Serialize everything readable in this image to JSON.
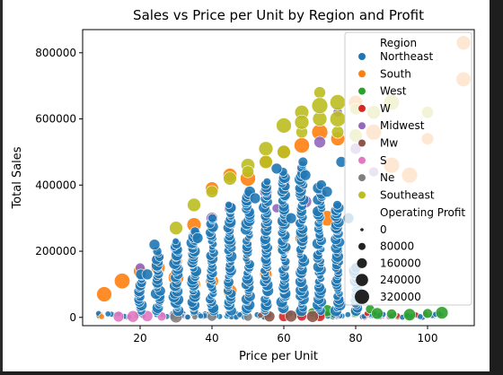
{
  "chart_data": {
    "type": "scatter",
    "title": "Sales vs Price per Unit by Region and Profit",
    "xlabel": "Price per Unit",
    "ylabel": "Total Sales",
    "xlim": [
      4,
      113
    ],
    "ylim": [
      -25000,
      870000
    ],
    "xticks": [
      20,
      40,
      60,
      80,
      100
    ],
    "yticks": [
      0,
      200000,
      400000,
      600000,
      800000
    ],
    "grid": false,
    "legend_position": "top-right",
    "hue_title": "Region",
    "size_title": "Operating Profit",
    "size_legend": [
      {
        "label": "0",
        "value": 0
      },
      {
        "label": "80000",
        "value": 80000
      },
      {
        "label": "160000",
        "value": 160000
      },
      {
        "label": "240000",
        "value": 240000
      },
      {
        "label": "320000",
        "value": 320000
      }
    ],
    "series": [
      {
        "name": "Northeast",
        "color": "#1f77b4",
        "bands": [
          {
            "x": 20,
            "ymax": 130000
          },
          {
            "x": 25,
            "ymax": 200000
          },
          {
            "x": 30,
            "ymax": 230000
          },
          {
            "x": 35,
            "ymax": 260000
          },
          {
            "x": 40,
            "ymax": 300000
          },
          {
            "x": 45,
            "ymax": 340000
          },
          {
            "x": 50,
            "ymax": 380000
          },
          {
            "x": 55,
            "ymax": 410000
          },
          {
            "x": 60,
            "ymax": 440000
          },
          {
            "x": 65,
            "ymax": 470000
          },
          {
            "x": 70,
            "ymax": 400000
          },
          {
            "x": 75,
            "ymax": 340000
          },
          {
            "x": 80,
            "ymax": 150000
          }
        ],
        "points": [
          [
            22,
            130000
          ],
          [
            24,
            220000
          ],
          [
            36,
            240000
          ],
          [
            52,
            360000
          ],
          [
            58,
            450000
          ],
          [
            62,
            300000
          ],
          [
            66,
            430000
          ],
          [
            72,
            380000
          ],
          [
            76,
            470000
          ],
          [
            78,
            300000
          ]
        ]
      },
      {
        "name": "South",
        "color": "#ff7f0e",
        "points": [
          [
            10,
            70000
          ],
          [
            15,
            110000
          ],
          [
            20,
            140000
          ],
          [
            25,
            150000
          ],
          [
            30,
            170000
          ],
          [
            35,
            280000
          ],
          [
            40,
            390000
          ],
          [
            45,
            430000
          ],
          [
            50,
            420000
          ],
          [
            55,
            470000
          ],
          [
            60,
            500000
          ],
          [
            65,
            520000
          ],
          [
            70,
            560000
          ],
          [
            75,
            540000
          ],
          [
            60,
            210000
          ],
          [
            65,
            240000
          ],
          [
            72,
            300000
          ],
          [
            80,
            650000
          ],
          [
            85,
            560000
          ],
          [
            90,
            460000
          ],
          [
            95,
            430000
          ],
          [
            100,
            540000
          ],
          [
            110,
            830000
          ],
          [
            110,
            720000
          ],
          [
            40,
            110000
          ],
          [
            45,
            80000
          ],
          [
            55,
            130000
          ],
          [
            30,
            120000
          ],
          [
            35,
            100000
          ]
        ]
      },
      {
        "name": "West",
        "color": "#2ca02c",
        "points": [
          [
            64,
            10000
          ],
          [
            68,
            15000
          ],
          [
            72,
            20000
          ],
          [
            80,
            15000
          ],
          [
            84,
            25000
          ],
          [
            86,
            12000
          ],
          [
            90,
            10000
          ],
          [
            95,
            8000
          ],
          [
            100,
            12000
          ],
          [
            104,
            14000
          ]
        ]
      },
      {
        "name": "W",
        "color": "#d62728",
        "points": [
          [
            60,
            3000
          ],
          [
            65,
            4000
          ],
          [
            70,
            3500
          ]
        ]
      },
      {
        "name": "Midwest",
        "color": "#9467bd",
        "points": [
          [
            20,
            150000
          ],
          [
            25,
            180000
          ],
          [
            30,
            210000
          ],
          [
            35,
            250000
          ],
          [
            40,
            300000
          ],
          [
            45,
            330000
          ],
          [
            50,
            360000
          ],
          [
            55,
            380000
          ],
          [
            60,
            410000
          ],
          [
            65,
            440000
          ],
          [
            70,
            530000
          ],
          [
            75,
            620000
          ],
          [
            80,
            510000
          ],
          [
            85,
            440000
          ],
          [
            50,
            280000
          ],
          [
            58,
            330000
          ],
          [
            66,
            350000
          ]
        ]
      },
      {
        "name": "Mw",
        "color": "#8c564b",
        "points": [
          [
            56,
            3000
          ],
          [
            62,
            4000
          ],
          [
            68,
            3000
          ]
        ]
      },
      {
        "name": "S",
        "color": "#e377c2",
        "points": [
          [
            14,
            2000
          ],
          [
            18,
            3000
          ],
          [
            22,
            4000
          ],
          [
            26,
            3000
          ]
        ]
      },
      {
        "name": "Ne",
        "color": "#7f7f7f",
        "points": [
          [
            30,
            2000
          ],
          [
            40,
            3000
          ],
          [
            50,
            2500
          ]
        ]
      },
      {
        "name": "Southeast",
        "color": "#bcbd22",
        "points": [
          [
            30,
            270000
          ],
          [
            35,
            340000
          ],
          [
            40,
            380000
          ],
          [
            45,
            420000
          ],
          [
            50,
            460000
          ],
          [
            55,
            510000
          ],
          [
            60,
            580000
          ],
          [
            65,
            620000
          ],
          [
            70,
            680000
          ],
          [
            75,
            650000
          ],
          [
            80,
            630000
          ],
          [
            70,
            600000
          ],
          [
            65,
            560000
          ],
          [
            60,
            500000
          ],
          [
            55,
            470000
          ],
          [
            50,
            440000
          ],
          [
            75,
            560000
          ],
          [
            80,
            550000
          ],
          [
            70,
            640000
          ],
          [
            65,
            590000
          ],
          [
            75,
            600000
          ],
          [
            85,
            620000
          ],
          [
            90,
            650000
          ],
          [
            100,
            620000
          ]
        ]
      }
    ]
  }
}
